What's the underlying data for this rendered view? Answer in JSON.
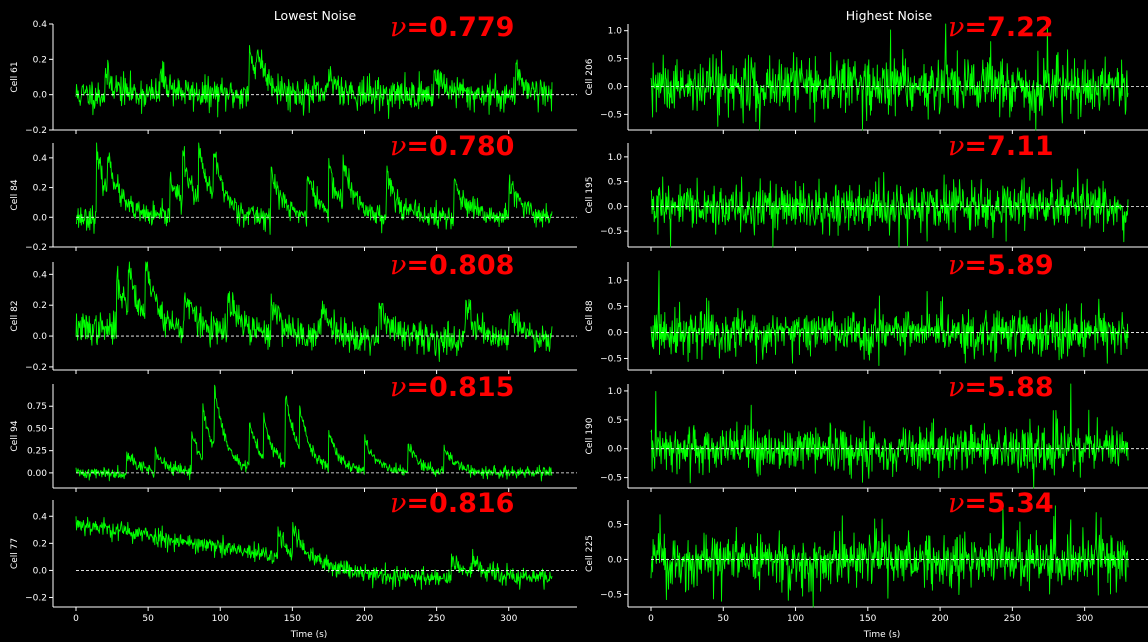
{
  "chart_data": {
    "type": "line",
    "accent_color": "#00ff00",
    "label_color": "#ff0000",
    "background": "#000000",
    "columns": [
      {
        "title": "Lowest Noise",
        "xlabel": "Time (s)",
        "xlim": [
          0,
          330
        ],
        "xticks": [
          "0",
          "50",
          "100",
          "150",
          "200",
          "250",
          "300"
        ],
        "panels": [
          {
            "ylabel": "Cell 61",
            "nu": "0.779",
            "ylim": [
              -0.2,
              0.4
            ],
            "yticks": [
              {
                "v": -0.2,
                "t": "−0.2"
              },
              {
                "v": 0.0,
                "t": "0.0"
              },
              {
                "v": 0.2,
                "t": "0.2"
              },
              {
                "v": 0.4,
                "t": "0.4"
              }
            ],
            "baseline": [
              0.0,
              0.0
            ],
            "noise": 0.045,
            "spikes": [
              [
                20,
                0.12
              ],
              [
                58,
                0.12
              ],
              [
                120,
                0.24
              ],
              [
                125,
                0.15
              ],
              [
                175,
                0.12
              ],
              [
                248,
                0.13
              ],
              [
                305,
                0.14
              ]
            ],
            "seed": 11,
            "sign": "+"
          },
          {
            "ylabel": "Cell 84",
            "nu": "0.780",
            "ylim": [
              -0.2,
              0.5
            ],
            "yticks": [
              {
                "v": -0.2,
                "t": "−0.2"
              },
              {
                "v": 0.0,
                "t": "0.0"
              },
              {
                "v": 0.2,
                "t": "0.2"
              },
              {
                "v": 0.4,
                "t": "0.4"
              }
            ],
            "baseline": [
              0.0,
              0.0
            ],
            "noise": 0.04,
            "spikes": [
              [
                14,
                0.45
              ],
              [
                22,
                0.3
              ],
              [
                65,
                0.3
              ],
              [
                74,
                0.35
              ],
              [
                85,
                0.38
              ],
              [
                95,
                0.35
              ],
              [
                135,
                0.32
              ],
              [
                160,
                0.28
              ],
              [
                175,
                0.3
              ],
              [
                185,
                0.3
              ],
              [
                215,
                0.3
              ],
              [
                262,
                0.25
              ],
              [
                300,
                0.25
              ]
            ],
            "seed": 23,
            "sign": "+"
          },
          {
            "ylabel": "Cell 82",
            "nu": "0.808",
            "ylim": [
              -0.22,
              0.48
            ],
            "yticks": [
              {
                "v": -0.2,
                "t": "−0.2"
              },
              {
                "v": 0.0,
                "t": "0.0"
              },
              {
                "v": 0.2,
                "t": "0.2"
              },
              {
                "v": 0.4,
                "t": "0.4"
              }
            ],
            "baseline": [
              0.05,
              -0.02
            ],
            "noise": 0.05,
            "spikes": [
              [
                28,
                0.38
              ],
              [
                36,
                0.32
              ],
              [
                48,
                0.4
              ],
              [
                75,
                0.25
              ],
              [
                105,
                0.25
              ],
              [
                135,
                0.22
              ],
              [
                170,
                0.22
              ],
              [
                210,
                0.25
              ],
              [
                270,
                0.25
              ],
              [
                300,
                0.2
              ]
            ],
            "seed": 37,
            "sign": "+"
          },
          {
            "ylabel": "Cell 94",
            "nu": "0.815",
            "ylim": [
              -0.17,
              1.0
            ],
            "yticks": [
              {
                "v": 0.0,
                "t": "0.00"
              },
              {
                "v": 0.25,
                "t": "0.25"
              },
              {
                "v": 0.5,
                "t": "0.50"
              },
              {
                "v": 0.75,
                "t": "0.75"
              }
            ],
            "baseline": [
              0.0,
              0.0
            ],
            "noise": 0.035,
            "spikes": [
              [
                35,
                0.25
              ],
              [
                55,
                0.22
              ],
              [
                80,
                0.45
              ],
              [
                88,
                0.6
              ],
              [
                96,
                0.75
              ],
              [
                120,
                0.55
              ],
              [
                130,
                0.5
              ],
              [
                145,
                0.85
              ],
              [
                155,
                0.5
              ],
              [
                175,
                0.45
              ],
              [
                200,
                0.4
              ],
              [
                230,
                0.32
              ],
              [
                255,
                0.3
              ]
            ],
            "seed": 41,
            "sign": "+"
          },
          {
            "ylabel": "Cell 77",
            "nu": "0.816",
            "ylim": [
              -0.27,
              0.52
            ],
            "yticks": [
              {
                "v": -0.2,
                "t": "−0.2"
              },
              {
                "v": 0.0,
                "t": "0.0"
              },
              {
                "v": 0.2,
                "t": "0.2"
              },
              {
                "v": 0.4,
                "t": "0.4"
              }
            ],
            "baseline": [
              0.35,
              -0.05
            ],
            "noise": 0.035,
            "spikes": [
              [
                140,
                0.2
              ],
              [
                150,
                0.2
              ],
              [
                260,
                0.15
              ],
              [
                275,
                0.12
              ]
            ],
            "seed": 53,
            "sign": "+"
          }
        ]
      },
      {
        "title": "Highest Noise",
        "xlabel": "Time (s)",
        "xlim": [
          0,
          330
        ],
        "xticks": [
          "0",
          "50",
          "100",
          "150",
          "200",
          "250",
          "300"
        ],
        "panels": [
          {
            "ylabel": "Cell 206",
            "nu": "7.22",
            "ylim": [
              -0.78,
              1.12
            ],
            "yticks": [
              {
                "v": -0.5,
                "t": "−0.5"
              },
              {
                "v": 0.0,
                "t": "0.0"
              },
              {
                "v": 0.5,
                "t": "0.5"
              },
              {
                "v": 1.0,
                "t": "1.0"
              }
            ],
            "baseline": [
              0.0,
              0.0
            ],
            "noise": 0.25,
            "spikes": [],
            "seed": 61,
            "sign": "±"
          },
          {
            "ylabel": "Cell 195",
            "nu": "7.11",
            "ylim": [
              -0.82,
              1.28
            ],
            "yticks": [
              {
                "v": -0.5,
                "t": "−0.5"
              },
              {
                "v": 0.0,
                "t": "0.0"
              },
              {
                "v": 0.5,
                "t": "0.5"
              },
              {
                "v": 1.0,
                "t": "1.0"
              }
            ],
            "baseline": [
              0.0,
              0.0
            ],
            "noise": 0.23,
            "spikes": [],
            "seed": 73,
            "sign": "±"
          },
          {
            "ylabel": "Cell 88",
            "nu": "5.89",
            "ylim": [
              -0.72,
              1.35
            ],
            "yticks": [
              {
                "v": -0.5,
                "t": "−0.5"
              },
              {
                "v": 0.0,
                "t": "0.0"
              },
              {
                "v": 0.5,
                "t": "0.5"
              },
              {
                "v": 1.0,
                "t": "1.0"
              }
            ],
            "baseline": [
              0.0,
              0.0
            ],
            "noise": 0.2,
            "spikes": [],
            "seed": 83,
            "sign": "±"
          },
          {
            "ylabel": "Cell 190",
            "nu": "5.88",
            "ylim": [
              -0.68,
              1.12
            ],
            "yticks": [
              {
                "v": -0.5,
                "t": "−0.5"
              },
              {
                "v": 0.0,
                "t": "0.0"
              },
              {
                "v": 0.5,
                "t": "0.5"
              },
              {
                "v": 1.0,
                "t": "1.0"
              }
            ],
            "baseline": [
              0.0,
              0.0
            ],
            "noise": 0.2,
            "spikes": [],
            "seed": 97,
            "sign": "±"
          },
          {
            "ylabel": "Cell 225",
            "nu": "5.34",
            "ylim": [
              -0.68,
              0.85
            ],
            "yticks": [
              {
                "v": -0.5,
                "t": "−0.5"
              },
              {
                "v": 0.0,
                "t": "0.0"
              },
              {
                "v": 0.5,
                "t": "0.5"
              }
            ],
            "baseline": [
              0.0,
              0.0
            ],
            "noise": 0.18,
            "spikes": [],
            "seed": 101,
            "sign": "±"
          }
        ]
      }
    ]
  },
  "nu_symbol": "ν",
  "nu_equals": "="
}
